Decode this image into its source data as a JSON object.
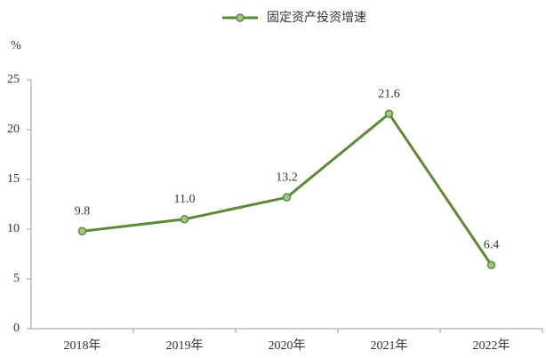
{
  "chart_data": {
    "type": "line",
    "ylabel": "%",
    "legend": "top",
    "categories": [
      "2018年",
      "2019年",
      "2020年",
      "2021年",
      "2022年"
    ],
    "series": [
      {
        "name": "固定资产投资增速",
        "color": "#5b8a36",
        "marker_color": "#a3c585",
        "values": [
          9.8,
          11.0,
          13.2,
          21.6,
          6.4
        ],
        "value_labels": [
          "9.8",
          "11.0",
          "13.2",
          "21.6",
          "6.4"
        ]
      }
    ],
    "ylim": [
      0,
      25
    ],
    "yticks": [
      0,
      5,
      10,
      15,
      20,
      25
    ],
    "grid": false
  }
}
